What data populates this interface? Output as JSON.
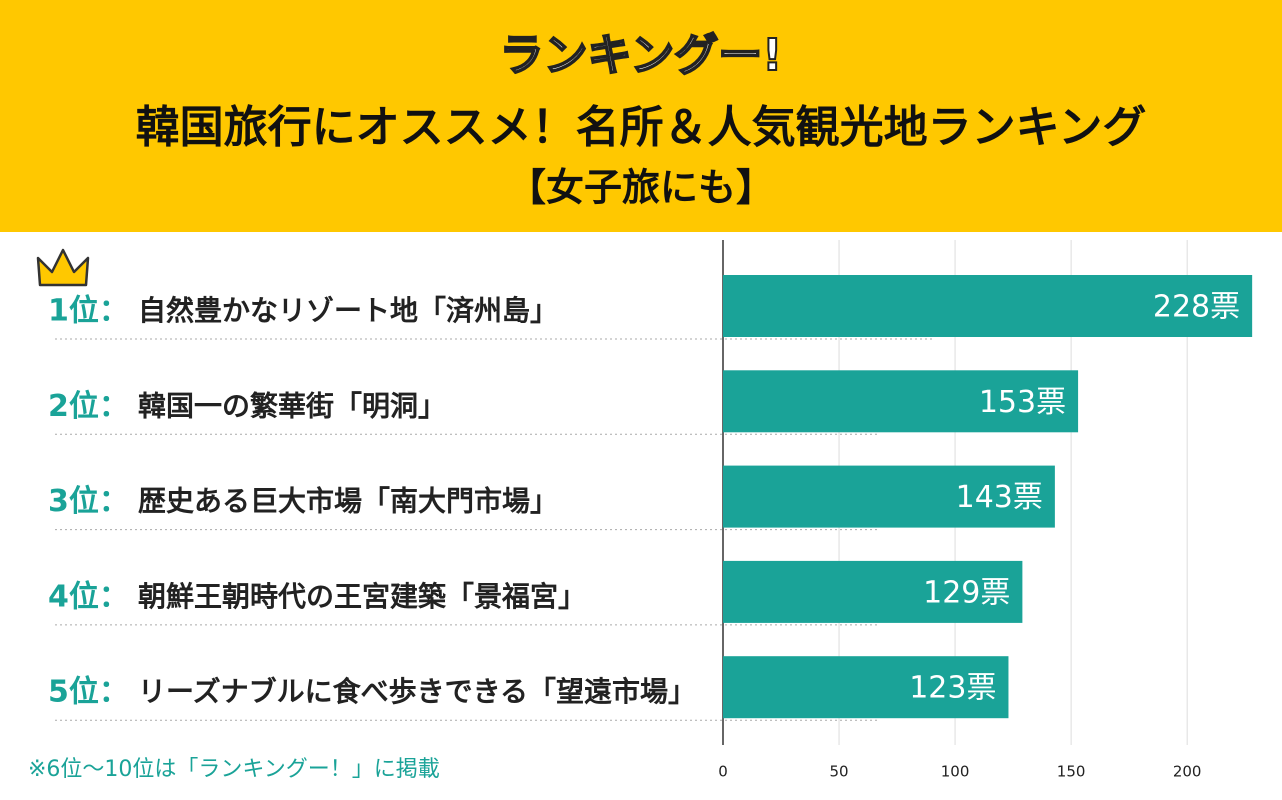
{
  "logo": "ランキングー!",
  "chart_data": {
    "type": "barh",
    "title": "韓国旅行にオススメ！名所＆人気観光地ランキング",
    "subtitle": "【女子旅にも】",
    "ranks": [
      "1位：",
      "2位：",
      "3位：",
      "4位：",
      "5位："
    ],
    "categories": [
      "自然豊かなリゾート地「済州島」",
      "韓国一の繁華街「明洞」",
      "歴史ある巨大市場「南大門市場」",
      "朝鮮王朝時代の王宮建築「景福宮」",
      "リーズナブルに食べ歩きできる「望遠市場」"
    ],
    "values": [
      228,
      153,
      143,
      129,
      123
    ],
    "value_labels": [
      "228票",
      "153票",
      "143票",
      "129票",
      "123票"
    ],
    "color": "#1aa398",
    "xlim": [
      0,
      240
    ],
    "xticks": [
      0,
      50,
      100,
      150,
      200
    ],
    "grid": true,
    "footnote": "※6位～10位は「ランキングー！」に掲載"
  }
}
